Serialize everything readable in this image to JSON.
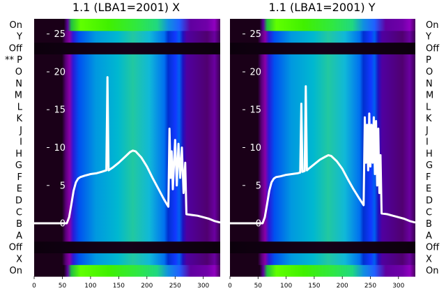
{
  "chart_data": [
    {
      "type": "heatmap",
      "title": "1.1 (LBA1=2001) X",
      "xlabel": "",
      "ylabel": "",
      "xlim": [
        0,
        330
      ],
      "x_ticks": [
        0,
        50,
        100,
        150,
        200,
        250,
        300
      ],
      "ylim": [
        -7,
        27
      ],
      "y_ticks": [
        0,
        5,
        10,
        15,
        20,
        25
      ],
      "row_labels": [
        "On",
        "X",
        "Off",
        "A",
        "B",
        "C",
        "D",
        "E",
        "F",
        "G",
        "H",
        "I",
        "J",
        "K",
        "L",
        "M",
        "N",
        "O",
        "** P",
        "Off",
        "Y",
        "On"
      ],
      "grid": false,
      "series": [
        {
          "kind": "curve",
          "x": [
            0,
            58,
            62,
            66,
            70,
            74,
            78,
            82,
            90,
            100,
            110,
            120,
            128,
            130,
            132,
            134,
            140,
            150,
            160,
            170,
            175,
            180,
            190,
            200,
            210,
            220,
            230,
            238,
            240,
            242,
            244,
            246,
            250,
            253,
            256,
            259,
            262,
            265,
            268,
            270,
            280,
            290,
            300,
            310,
            320,
            330
          ],
          "y": [
            0,
            0,
            0.8,
            2.5,
            4.3,
            5.4,
            5.9,
            6.1,
            6.3,
            6.5,
            6.6,
            6.8,
            7.0,
            19.3,
            7.0,
            7.1,
            7.4,
            8.0,
            8.7,
            9.4,
            9.6,
            9.5,
            8.7,
            7.5,
            6.0,
            4.6,
            3.2,
            2.2,
            12.5,
            6.0,
            9.5,
            4.5,
            11.0,
            5.0,
            10.5,
            6.0,
            10.0,
            4.0,
            8.0,
            1.2,
            1.1,
            1.0,
            0.8,
            0.6,
            0.3,
            0.1
          ]
        }
      ]
    },
    {
      "type": "heatmap",
      "title": "1.1 (LBA1=2001) Y",
      "xlabel": "",
      "ylabel": "",
      "xlim": [
        0,
        330
      ],
      "x_ticks": [
        0,
        50,
        100,
        150,
        200,
        250,
        300
      ],
      "ylim": [
        -7,
        27
      ],
      "y_ticks": [
        0,
        5,
        10,
        15,
        20,
        25
      ],
      "row_labels": [
        "On",
        "X",
        "Off",
        "A",
        "B",
        "C",
        "D",
        "E",
        "F",
        "G",
        "H",
        "I",
        "J",
        "K",
        "L",
        "M",
        "N",
        "O",
        "P",
        "Off",
        "Y",
        "On"
      ],
      "grid": false,
      "series": [
        {
          "kind": "curve",
          "x": [
            0,
            58,
            62,
            66,
            70,
            74,
            78,
            82,
            90,
            100,
            110,
            120,
            125,
            127,
            129,
            133,
            135,
            137,
            140,
            150,
            160,
            170,
            175,
            180,
            190,
            200,
            210,
            220,
            230,
            238,
            240,
            242,
            244,
            246,
            248,
            250,
            252,
            254,
            256,
            258,
            260,
            262,
            264,
            266,
            268,
            270,
            280,
            290,
            300,
            310,
            320,
            330
          ],
          "y": [
            0,
            0,
            0.8,
            2.5,
            4.3,
            5.4,
            5.9,
            6.1,
            6.2,
            6.4,
            6.5,
            6.6,
            6.7,
            15.8,
            6.8,
            6.9,
            18.1,
            7.0,
            7.2,
            7.8,
            8.4,
            8.8,
            9.0,
            8.9,
            8.2,
            7.2,
            5.8,
            4.5,
            3.3,
            2.4,
            14.0,
            8.0,
            13.0,
            7.0,
            14.5,
            7.5,
            13.0,
            8.0,
            14.0,
            6.5,
            13.5,
            5.0,
            12.5,
            4.0,
            9.0,
            1.3,
            1.2,
            1.0,
            0.8,
            0.6,
            0.3,
            0.1
          ]
        }
      ]
    }
  ]
}
